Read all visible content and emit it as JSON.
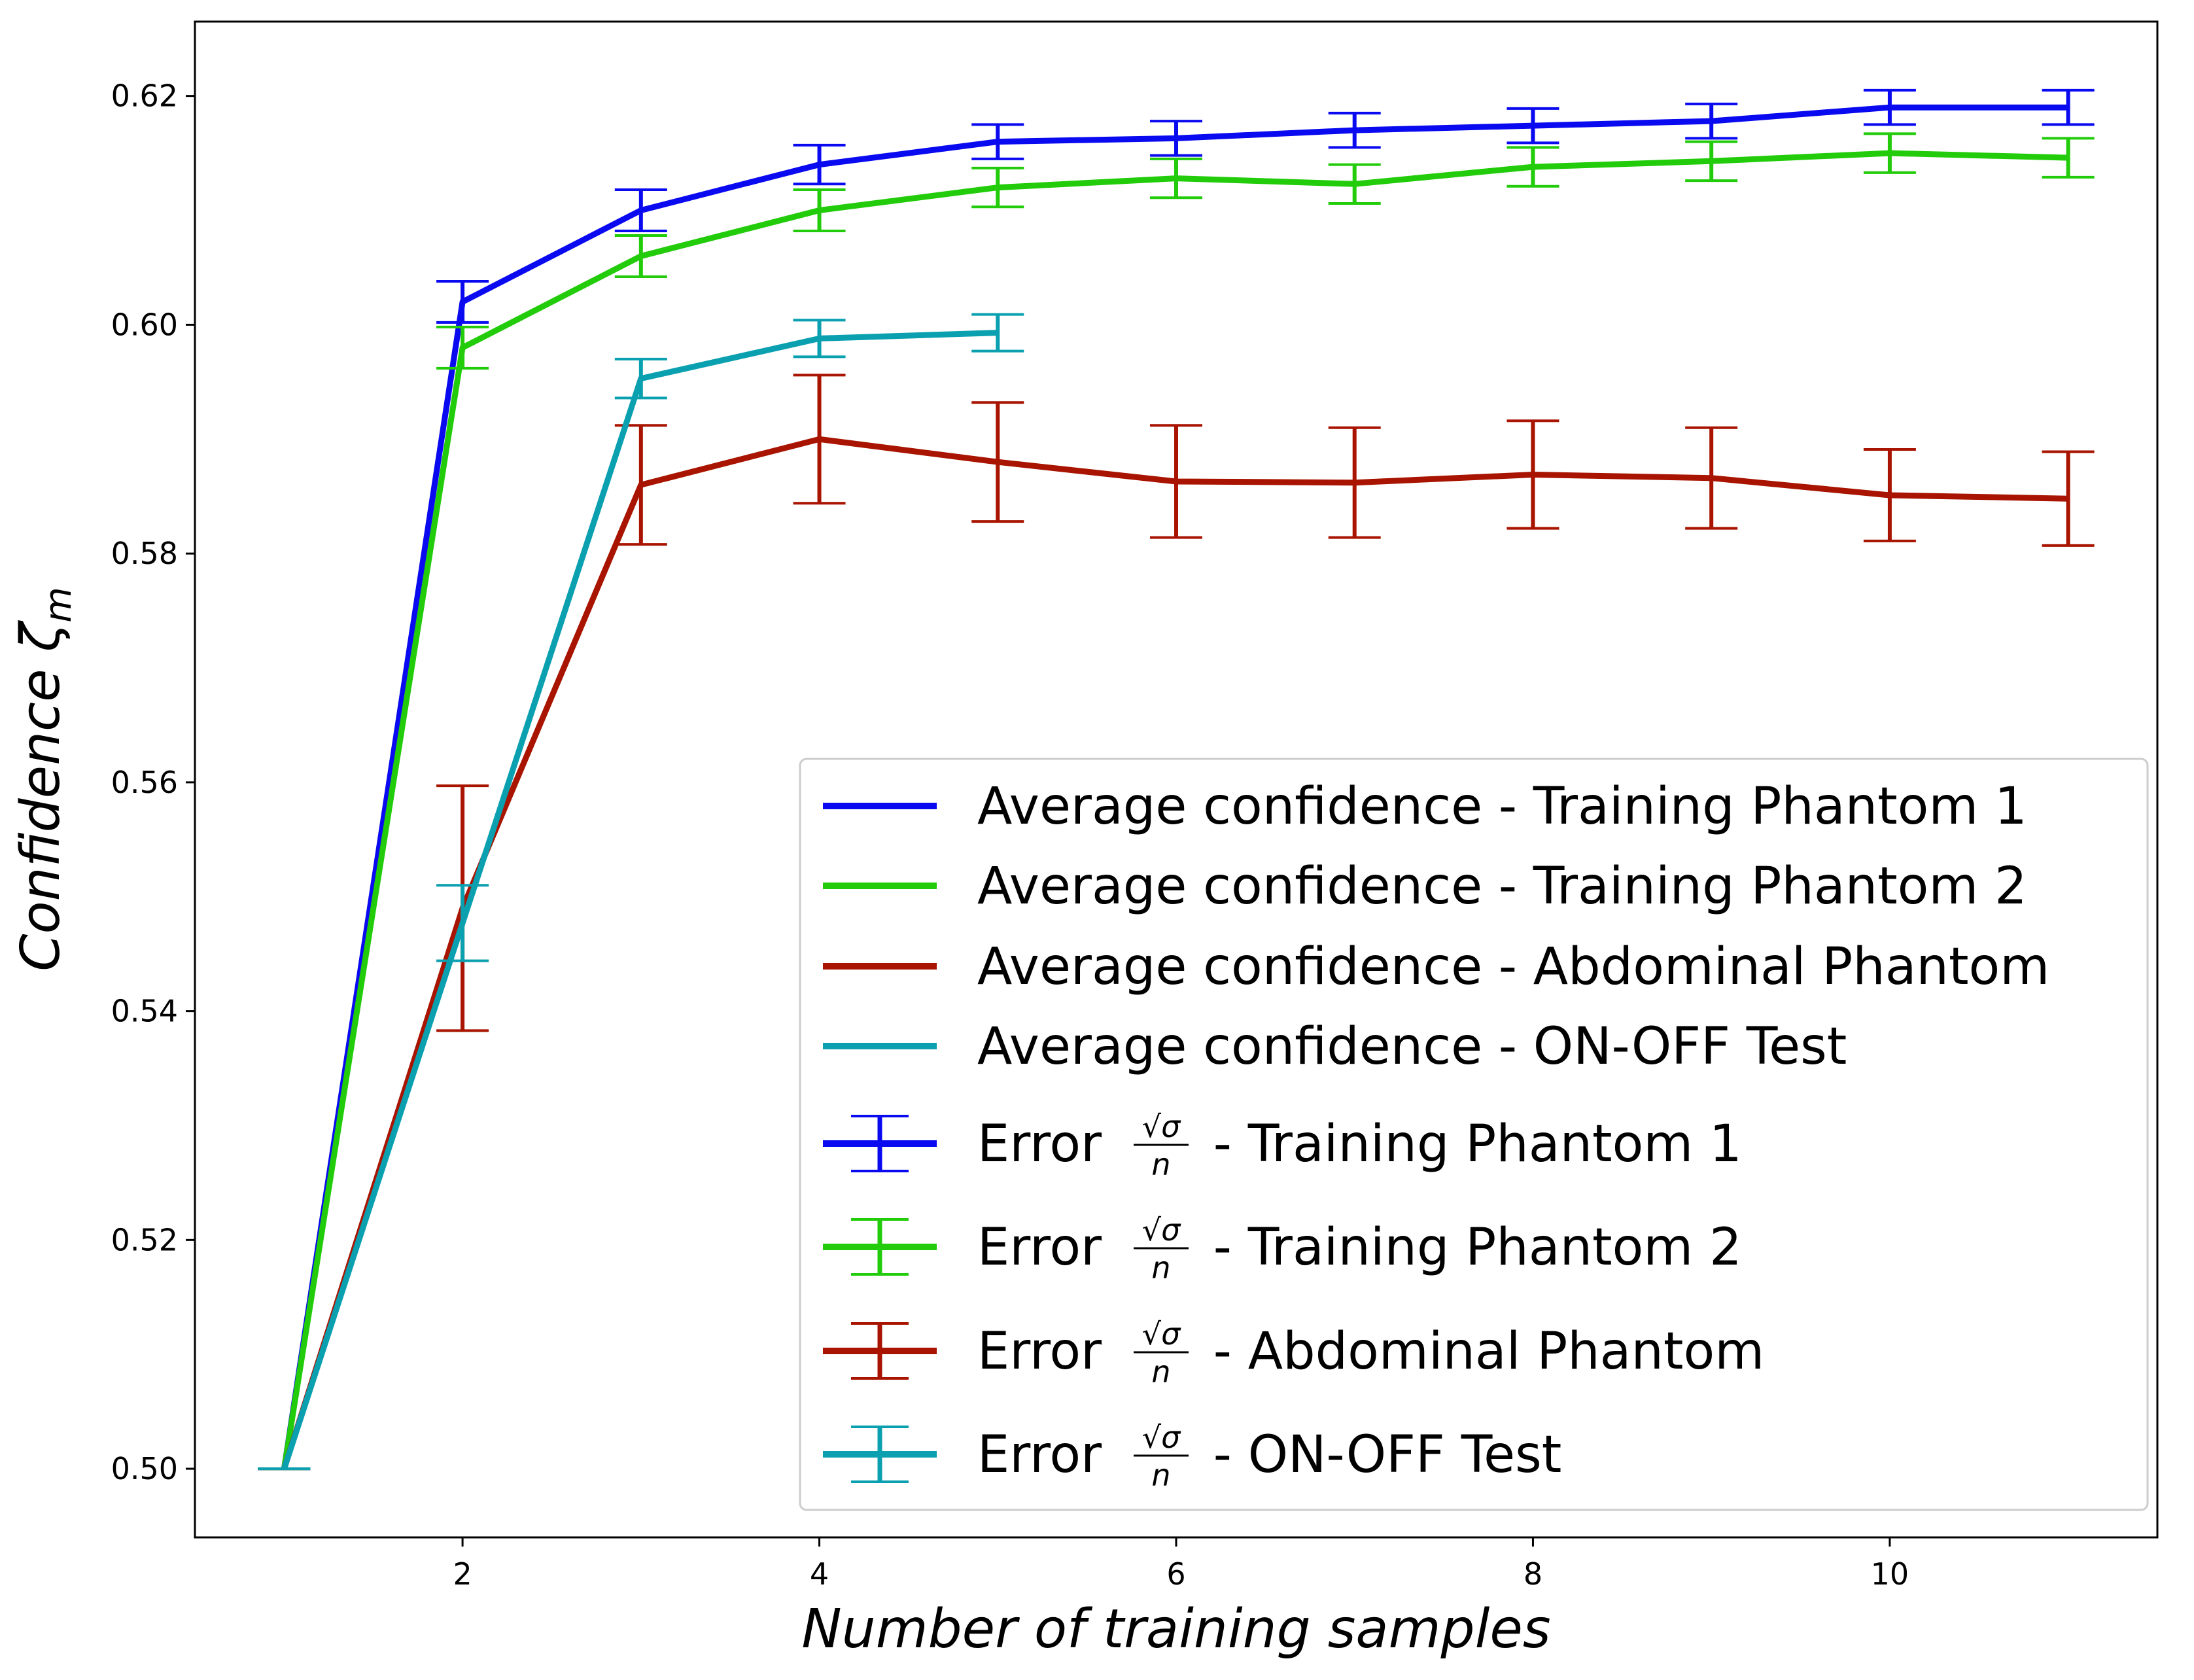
{
  "chart_data": {
    "type": "line",
    "xlabel": "Number of training samples",
    "ylabel_main": "Confidence ",
    "ylabel_symbol": "ζ",
    "ylabel_sub": "m",
    "xlim": [
      0.5,
      11.5
    ],
    "ylim": [
      0.494,
      0.6265
    ],
    "xticks": [
      2,
      4,
      6,
      8,
      10
    ],
    "xtick_labels": [
      "2",
      "4",
      "6",
      "8",
      "10"
    ],
    "yticks": [
      0.5,
      0.52,
      0.54,
      0.56,
      0.58,
      0.6,
      0.62
    ],
    "ytick_labels": [
      "0.50",
      "0.52",
      "0.54",
      "0.56",
      "0.58",
      "0.60",
      "0.62"
    ],
    "grid": false,
    "legend_position": "lower-right",
    "series": [
      {
        "name": "Average confidence - Training Phantom 1",
        "color": "#0a0af0",
        "x": [
          1,
          2,
          3,
          4,
          5,
          6,
          7,
          8,
          9,
          10,
          11
        ],
        "y": [
          0.5,
          0.602,
          0.61,
          0.614,
          0.616,
          0.6163,
          0.617,
          0.6174,
          0.6178,
          0.619,
          0.619
        ],
        "err": [
          0.0,
          0.0018,
          0.0018,
          0.0017,
          0.0015,
          0.0015,
          0.0015,
          0.0015,
          0.0015,
          0.0015,
          0.0015
        ]
      },
      {
        "name": "Average confidence - Training Phantom 2",
        "color": "#22cc0a",
        "x": [
          1,
          2,
          3,
          4,
          5,
          6,
          7,
          8,
          9,
          10,
          11
        ],
        "y": [
          0.5,
          0.598,
          0.606,
          0.61,
          0.612,
          0.6128,
          0.6123,
          0.6138,
          0.6143,
          0.615,
          0.6146
        ],
        "err": [
          0.0,
          0.0018,
          0.0018,
          0.0018,
          0.0017,
          0.0017,
          0.0017,
          0.0017,
          0.0017,
          0.0017,
          0.0017
        ]
      },
      {
        "name": "Average confidence - Abdominal Phantom",
        "color": "#a81400",
        "x": [
          1,
          2,
          3,
          4,
          5,
          6,
          7,
          8,
          9,
          10,
          11
        ],
        "y": [
          0.5,
          0.549,
          0.586,
          0.59,
          0.588,
          0.5863,
          0.5862,
          0.5869,
          0.5866,
          0.5851,
          0.5848
        ],
        "err": [
          0.0,
          0.0107,
          0.0052,
          0.0056,
          0.0052,
          0.0049,
          0.0048,
          0.0047,
          0.0044,
          0.004,
          0.0041
        ]
      },
      {
        "name": "Average confidence - ON-OFF Test",
        "color": "#0aa0b0",
        "x": [
          1,
          2,
          3,
          4,
          5
        ],
        "y": [
          0.5,
          0.5477,
          0.5953,
          0.5988,
          0.5993
        ],
        "err": [
          0.0,
          0.0033,
          0.0017,
          0.0016,
          0.0016
        ]
      }
    ],
    "legend_error_entries": [
      {
        "prefix": "Error ",
        "numerator": "√σ",
        "denominator": "n",
        "suffix": " - Training Phantom 1",
        "color": "#0a0af0"
      },
      {
        "prefix": "Error ",
        "numerator": "√σ",
        "denominator": "n",
        "suffix": " - Training Phantom 2",
        "color": "#22cc0a"
      },
      {
        "prefix": "Error ",
        "numerator": "√σ",
        "denominator": "n",
        "suffix": " - Abdominal Phantom",
        "color": "#a81400"
      },
      {
        "prefix": "Error ",
        "numerator": "√σ",
        "denominator": "n",
        "suffix": " - ON-OFF Test",
        "color": "#0aa0b0"
      }
    ]
  }
}
